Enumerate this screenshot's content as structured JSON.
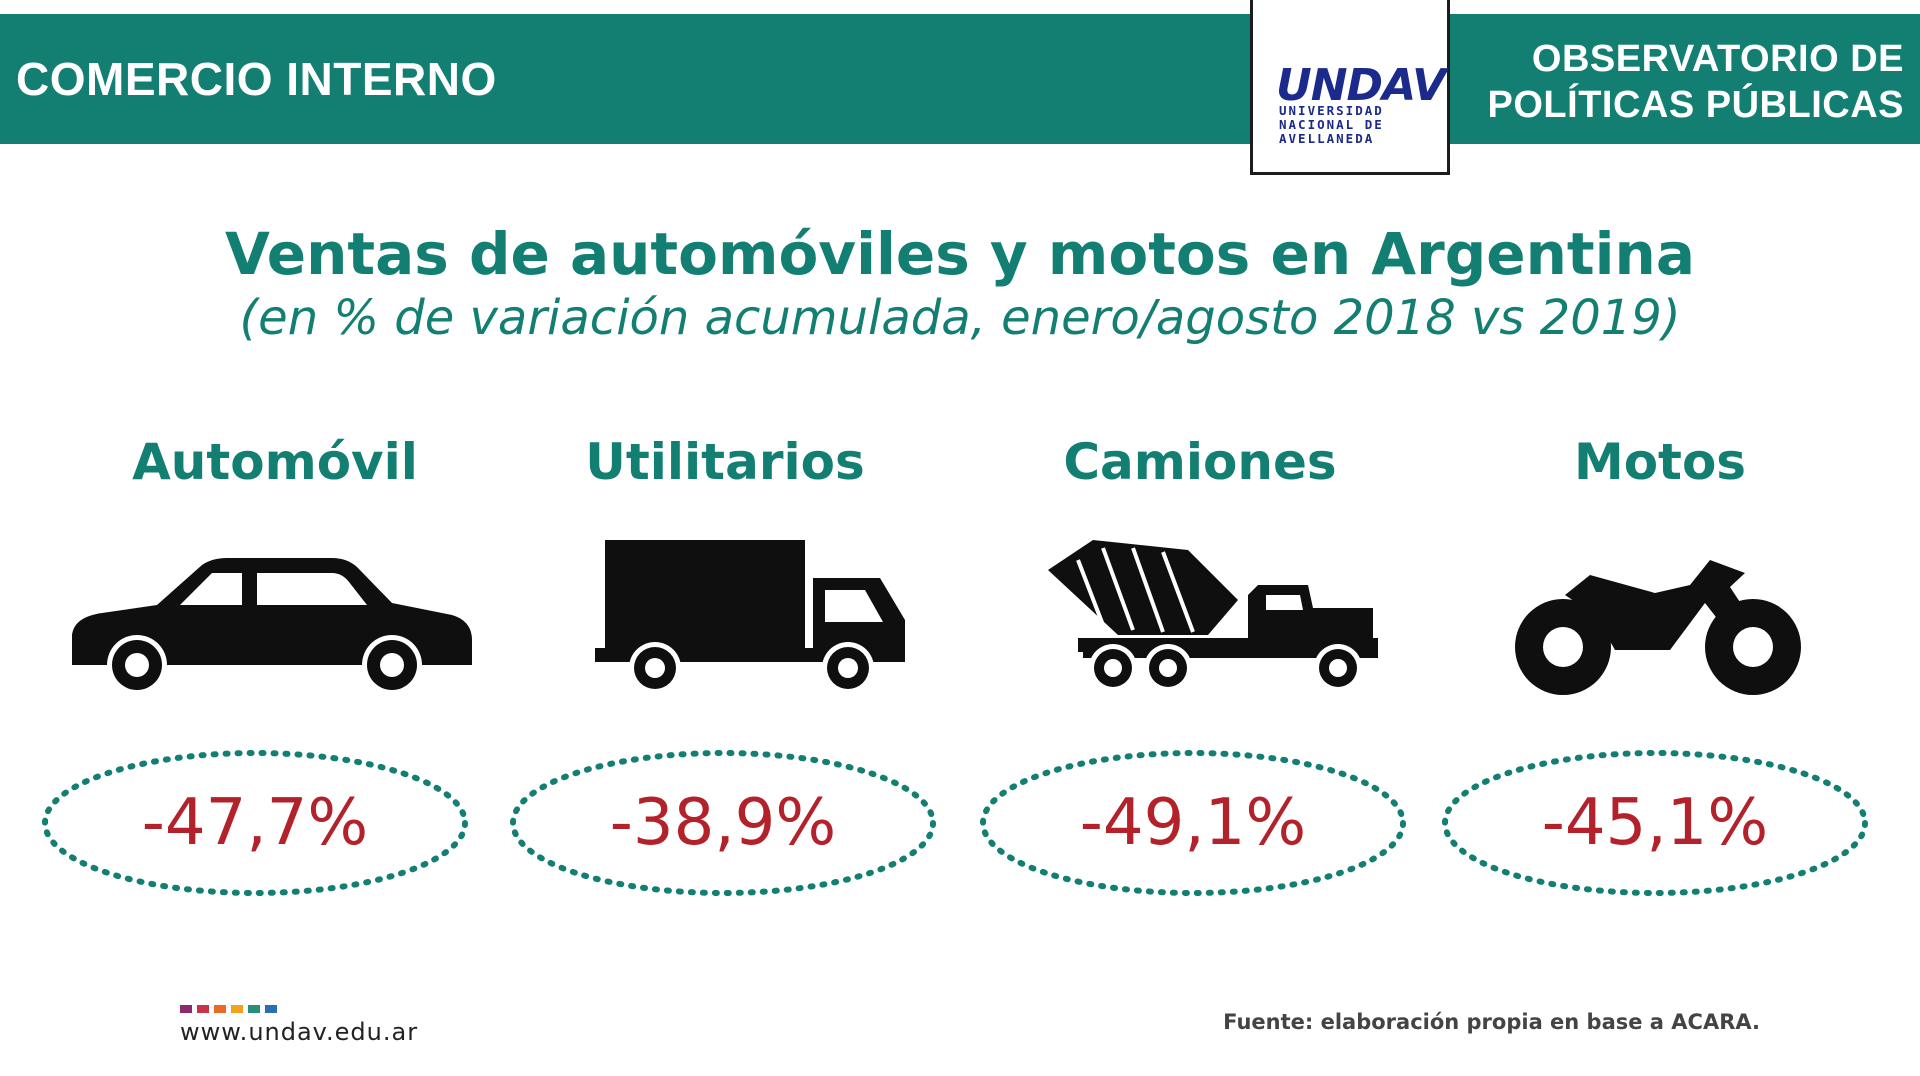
{
  "header": {
    "section": "COMERCIO INTERNO",
    "observatorio_line1": "OBSERVATORIO DE",
    "observatorio_line2": "POLÍTICAS PÚBLICAS",
    "logo_mark": "UNDAV",
    "logo_line1": "UNIVERSIDAD",
    "logo_line2": "NACIONAL DE",
    "logo_line3": "AVELLANEDA"
  },
  "colors": {
    "teal": "#137f72",
    "red": "#b3222a",
    "icon": "#0f0f0f",
    "dot_colors": [
      "#8e2a6b",
      "#c8324a",
      "#e86a24",
      "#f2a21c",
      "#2a8f78",
      "#2a6fb0"
    ]
  },
  "footer": {
    "url": "www.undav.edu.ar",
    "source": "Fuente: elaboración propia en base a ACARA."
  },
  "icons": [
    "car-icon",
    "delivery-truck-icon",
    "cement-mixer-truck-icon",
    "motorcycle-icon"
  ],
  "chart_data": {
    "type": "table",
    "title": "Ventas de automóviles y motos en Argentina",
    "subtitle": "(en % de variación acumulada, enero/agosto 2018 vs 2019)",
    "categories": [
      "Automóvil",
      "Utilitarios",
      "Camiones",
      "Motos"
    ],
    "values": [
      -47.7,
      -38.9,
      -49.1,
      -45.1
    ],
    "value_labels": [
      "-47,7%",
      "-38,9%",
      "-49,1%",
      "-45,1%"
    ]
  }
}
